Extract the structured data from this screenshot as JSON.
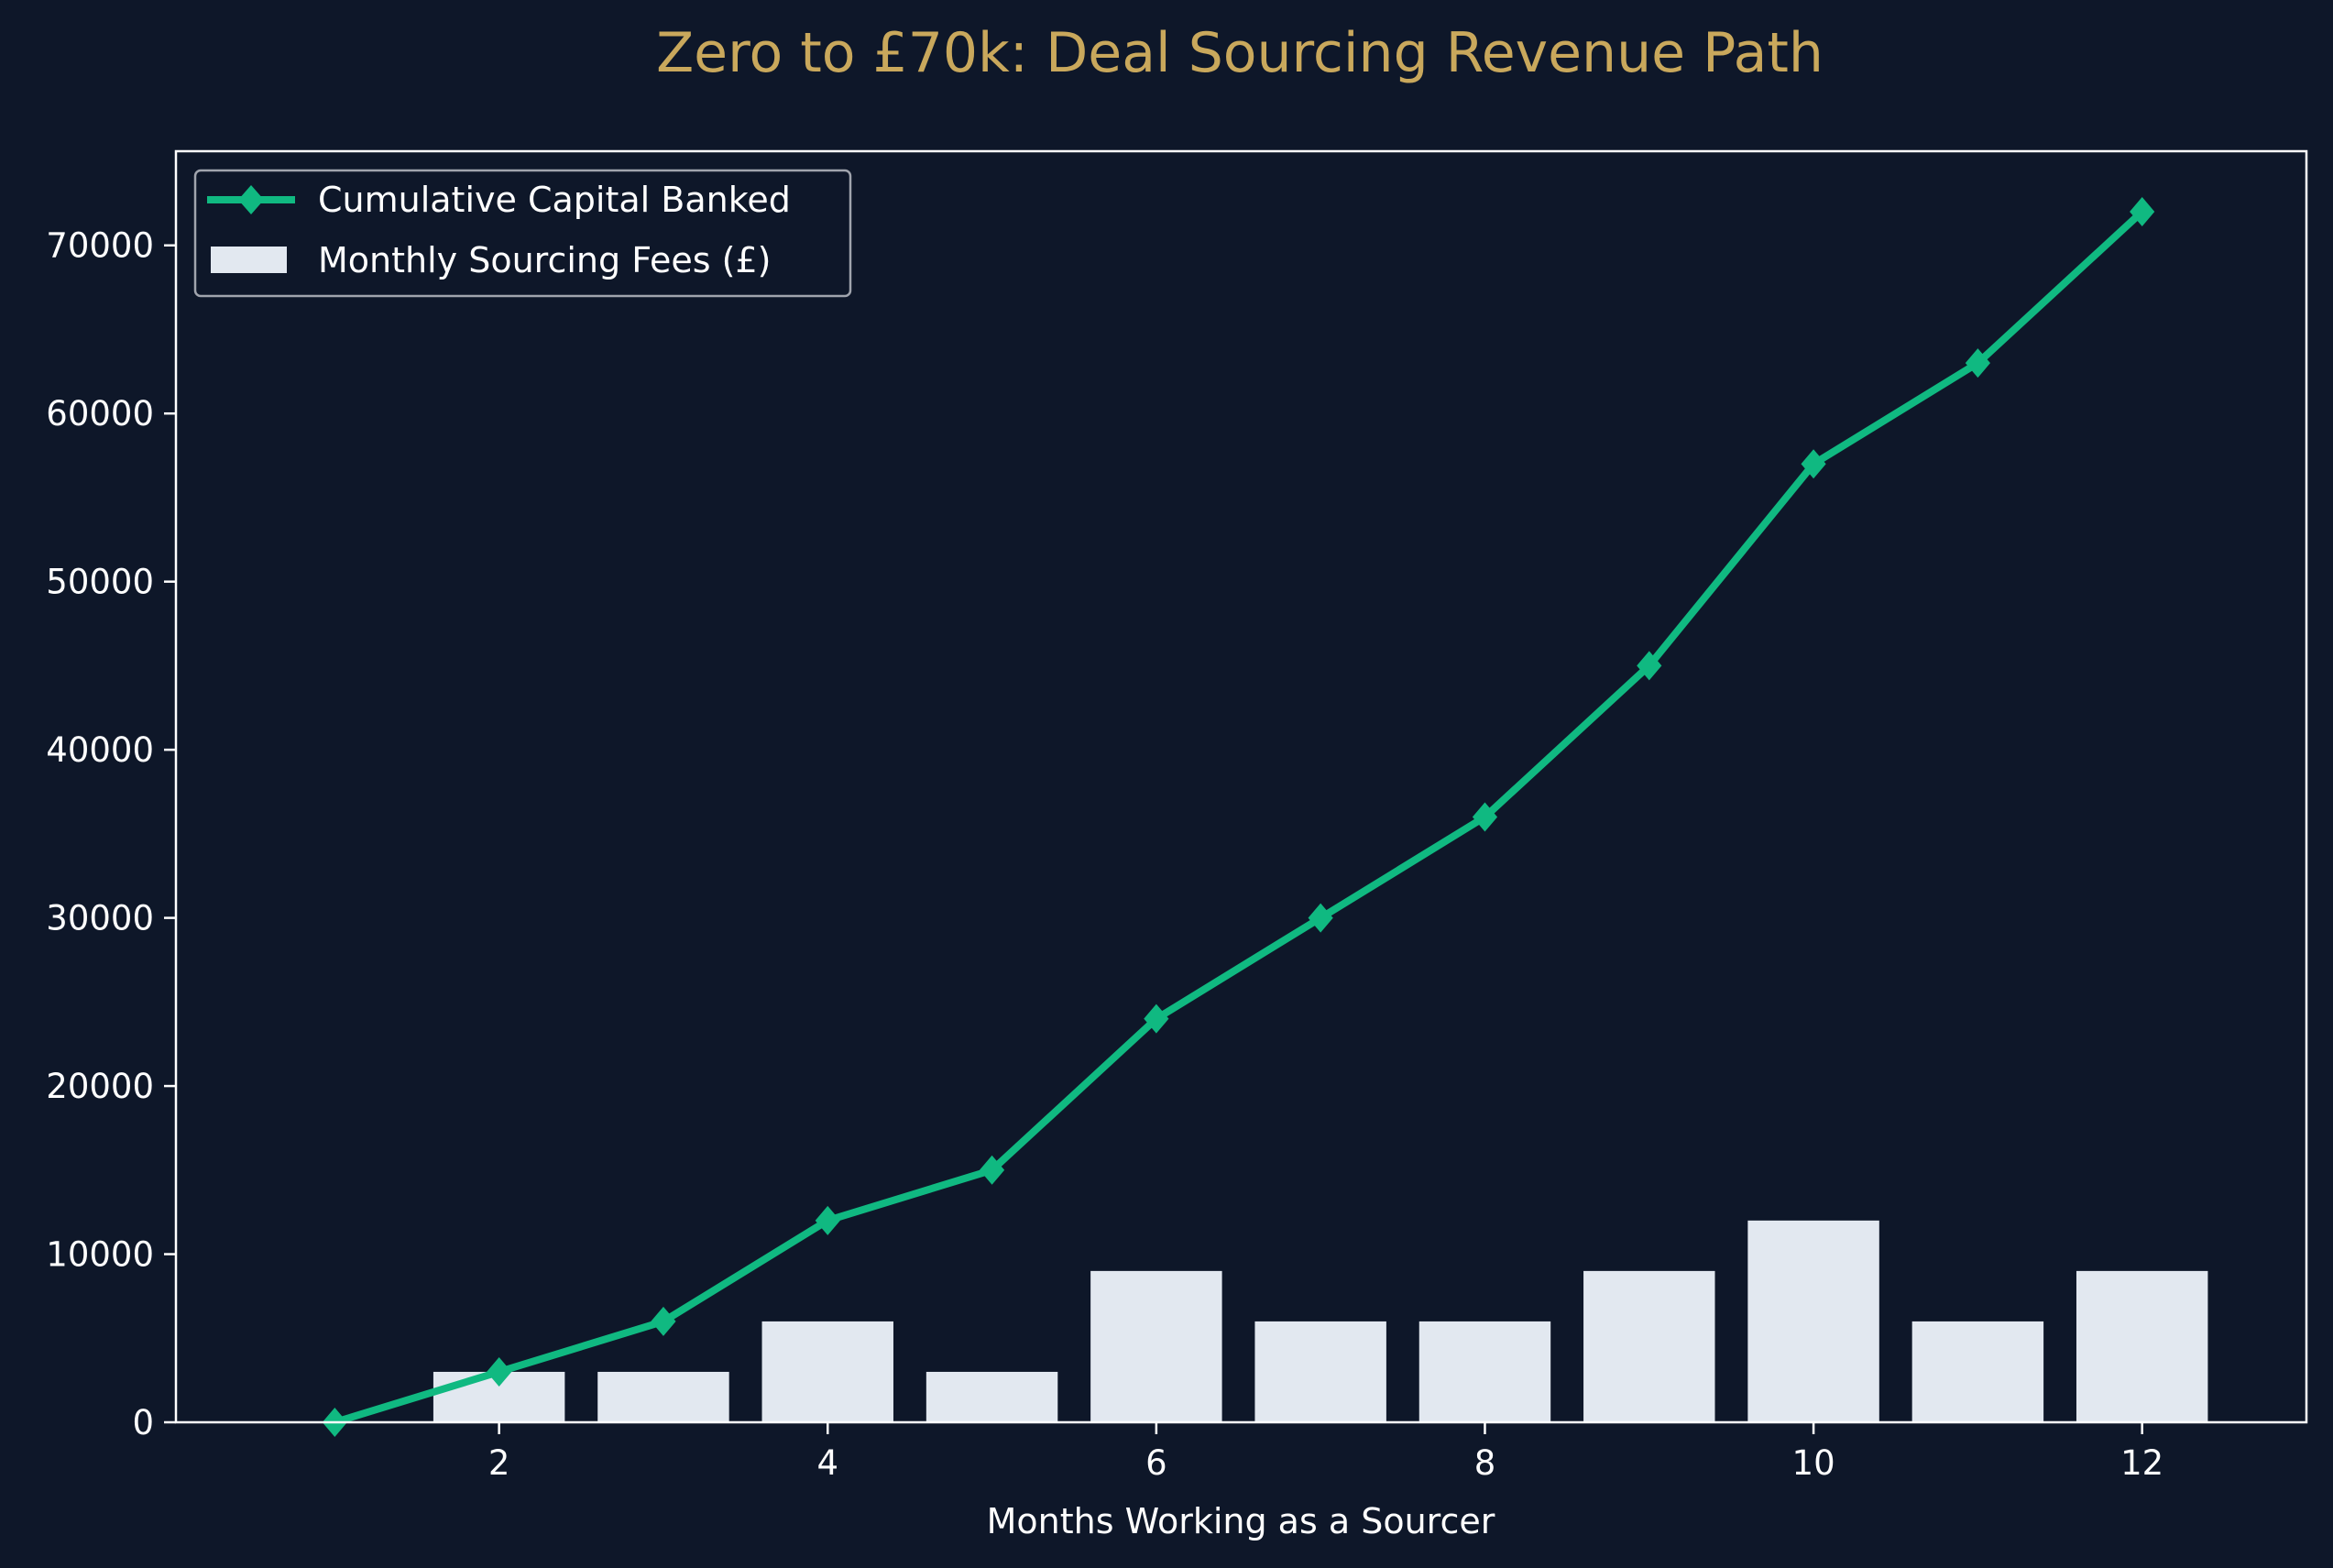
{
  "colors": {
    "background": "#0e1729",
    "title": "#c9a85c",
    "axis": "#ffffff",
    "line": "#10b981",
    "bar": "#e2e8f0",
    "legend_border": "#a0a4ad"
  },
  "chart_data": {
    "type": "bar+line",
    "title": "Zero to £70k: Deal Sourcing Revenue Path",
    "xlabel": "Months Working as a Sourcer",
    "ylabel": "",
    "x": [
      1,
      2,
      3,
      4,
      5,
      6,
      7,
      8,
      9,
      10,
      11,
      12
    ],
    "xlim": [
      0.0333,
      13.0
    ],
    "ylim": [
      0,
      75600
    ],
    "x_ticks": [
      2,
      4,
      6,
      8,
      10,
      12
    ],
    "y_ticks": [
      0,
      10000,
      20000,
      30000,
      40000,
      50000,
      60000,
      70000
    ],
    "grid": false,
    "legend_position": "top-left",
    "series": [
      {
        "name": "Cumulative Capital Banked",
        "type": "line",
        "marker": "diamond",
        "values": [
          0,
          3000,
          6000,
          12000,
          15000,
          24000,
          30000,
          36000,
          45000,
          57000,
          63000,
          72000
        ]
      },
      {
        "name": "Monthly Sourcing Fees (£)",
        "type": "bar",
        "values": [
          0,
          3000,
          3000,
          6000,
          3000,
          9000,
          6000,
          6000,
          9000,
          12000,
          6000,
          9000
        ]
      }
    ]
  }
}
